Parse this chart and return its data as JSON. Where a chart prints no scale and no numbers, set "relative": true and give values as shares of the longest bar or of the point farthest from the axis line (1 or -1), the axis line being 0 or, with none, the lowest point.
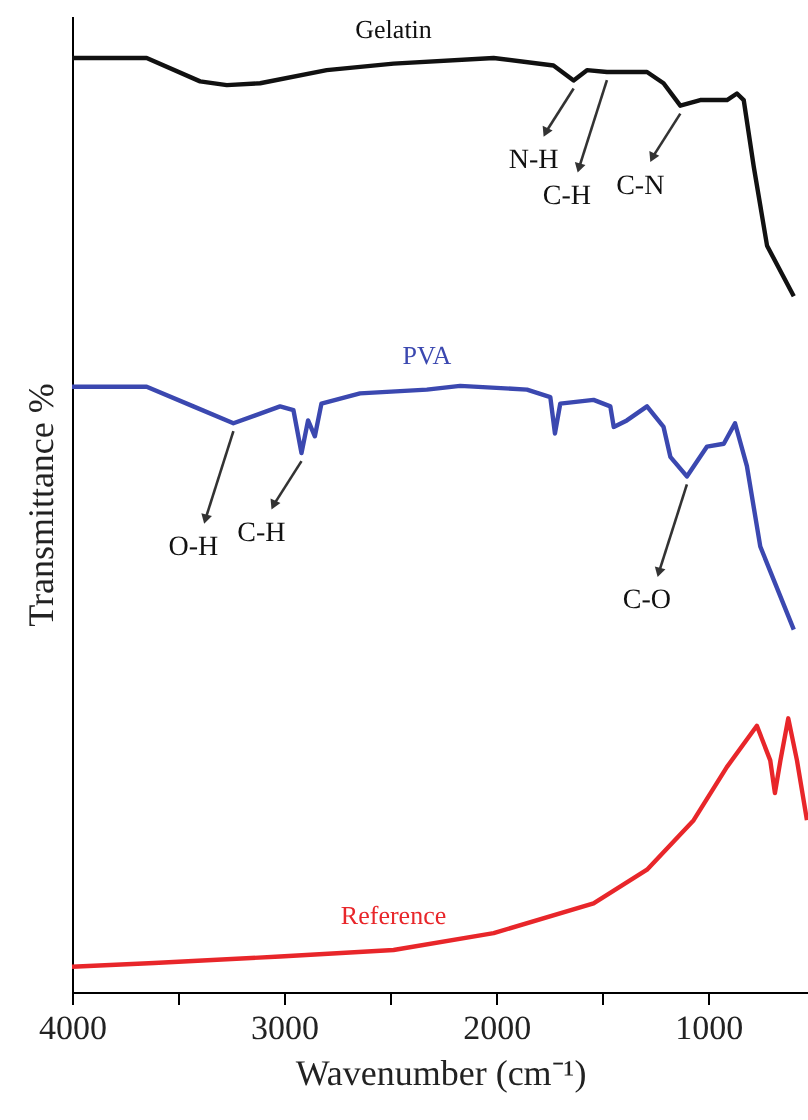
{
  "chart_data": {
    "type": "line",
    "xlabel": "Wavenumber (cm⁻¹)",
    "ylabel": "Transmittance %",
    "relative": true,
    "xlim": [
      4000,
      530
    ],
    "xticks": [
      4000,
      {
        "value": 3500,
        "label": null
      },
      3000,
      {
        "value": 2500,
        "label": null
      },
      2000,
      {
        "value": 1500,
        "label": null
      },
      1000
    ],
    "grid": false,
    "marker": "none",
    "line_style": "solid",
    "series": [
      {
        "name": "Gelatin",
        "color": "#111111",
        "x": [
          4000,
          3648,
          3396,
          3270,
          3113,
          2799,
          2484,
          2012,
          1730,
          1635,
          1572,
          1478,
          1289,
          1211,
          1132,
          1038,
          912,
          865,
          833,
          786,
          723,
          597
        ],
        "values": [
          1.0,
          1.0,
          0.975,
          0.971,
          0.973,
          0.987,
          0.994,
          1.0,
          0.992,
          0.976,
          0.987,
          0.985,
          0.985,
          0.973,
          0.949,
          0.955,
          0.955,
          0.962,
          0.955,
          0.884,
          0.799,
          0.745
        ]
      },
      {
        "name": "PVA",
        "color": "#3b48b0",
        "x": [
          4000,
          3648,
          3428,
          3239,
          3019,
          2956,
          2918,
          2887,
          2855,
          2824,
          2642,
          2327,
          2170,
          1855,
          1745,
          1723,
          1698,
          1541,
          1462,
          1446,
          1384,
          1289,
          1211,
          1179,
          1101,
          1006,
          927,
          874,
          818,
          755,
          597
        ],
        "values": [
          0.648,
          0.648,
          0.627,
          0.609,
          0.627,
          0.623,
          0.577,
          0.612,
          0.595,
          0.63,
          0.641,
          0.645,
          0.649,
          0.645,
          0.637,
          0.598,
          0.63,
          0.634,
          0.627,
          0.605,
          0.612,
          0.627,
          0.605,
          0.573,
          0.552,
          0.584,
          0.587,
          0.609,
          0.563,
          0.477,
          0.388
        ]
      },
      {
        "name": "Reference",
        "color": "#e8262a",
        "x": [
          4000,
          3613,
          3019,
          2484,
          2012,
          1541,
          1289,
          1069,
          912,
          771,
          708,
          686,
          660,
          623,
          582,
          535
        ],
        "values": [
          0.027,
          0.031,
          0.038,
          0.045,
          0.063,
          0.095,
          0.131,
          0.184,
          0.241,
          0.285,
          0.248,
          0.213,
          0.248,
          0.293,
          0.248,
          0.184
        ]
      }
    ],
    "annotations": [
      {
        "text": "N-H",
        "x": 1635,
        "y": 0.976
      },
      {
        "text": "C-H",
        "x": 1478,
        "y": 0.985
      },
      {
        "text": "C-N",
        "x": 1132,
        "y": 0.949
      },
      {
        "text": "O-H",
        "x": 3239,
        "y": 0.609
      },
      {
        "text": "C-H",
        "x": 2918,
        "y": 0.577
      },
      {
        "text": "C-O",
        "x": 1101,
        "y": 0.552
      }
    ]
  }
}
